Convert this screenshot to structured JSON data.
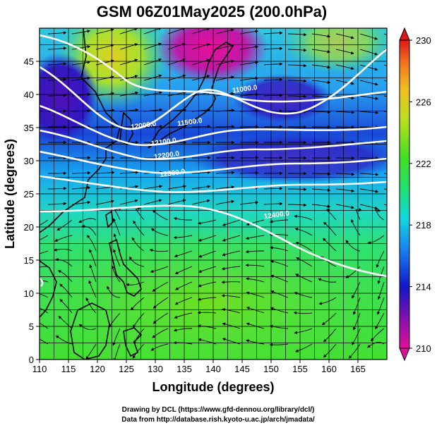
{
  "title": "GSM 06Z01May2025 (200.0hPa)",
  "xaxis": {
    "label": "Longitude (degrees)",
    "range": [
      110,
      170
    ],
    "ticks": [
      "110",
      "115",
      "120",
      "125",
      "130",
      "135",
      "140",
      "145",
      "150",
      "155",
      "160",
      "165"
    ]
  },
  "yaxis": {
    "label": "Latitude (degrees)",
    "range": [
      0,
      50
    ],
    "ticks": [
      "0",
      "5",
      "10",
      "15",
      "20",
      "25",
      "30",
      "35",
      "40",
      "45"
    ]
  },
  "colorbar": {
    "ticks": [
      "210",
      "214",
      "218",
      "222",
      "226",
      "230"
    ],
    "range": [
      210,
      230
    ],
    "colors": [
      "#e0109a",
      "#6a0ab8",
      "#1018c8",
      "#1a7ef0",
      "#10d8e0",
      "#22e060",
      "#44dd20",
      "#b8e020",
      "#f0c020",
      "#f07020",
      "#e01818"
    ]
  },
  "contours": [
    {
      "label": "11000.0",
      "lon": 145.5,
      "lat": 40.5
    },
    {
      "label": "11500.0",
      "lon": 136,
      "lat": 35.5
    },
    {
      "label": "12000.0",
      "lon": 128,
      "lat": 35
    },
    {
      "label": "12100.0",
      "lon": 131.5,
      "lat": 32.5
    },
    {
      "label": "12200.0",
      "lon": 132,
      "lat": 30.5
    },
    {
      "label": "12300.0",
      "lon": 133,
      "lat": 27.8
    },
    {
      "label": "12400.0",
      "lon": 151,
      "lat": 21.5
    }
  ],
  "credits": [
    "Drawing by DCL (https://www.gfd-dennou.org/library/dcl/)",
    "Data from http://database.rish.kyoto-u.ac.jp/arch/jmadata/"
  ]
}
